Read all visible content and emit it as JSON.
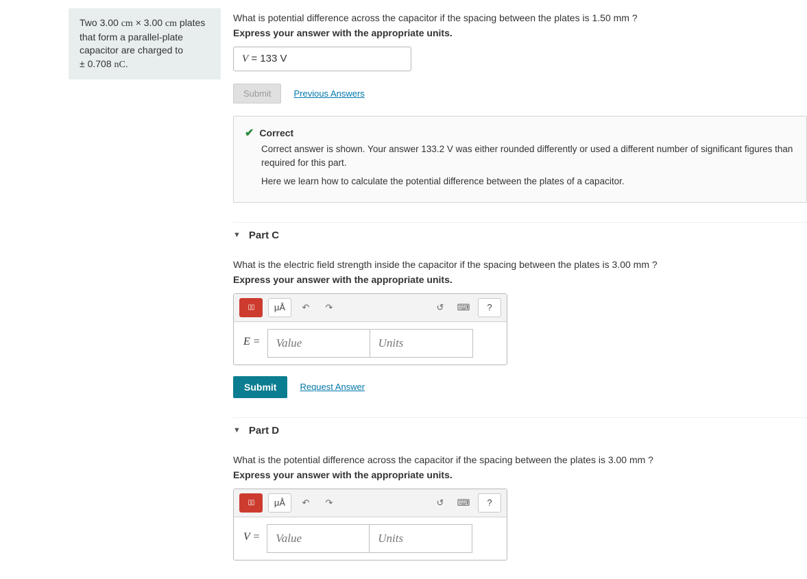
{
  "problem": {
    "line1_a": "Two 3.00 ",
    "unit1": "cm",
    "times": " × 3.00 ",
    "unit2": "cm",
    "line1_b": " plates that form a parallel-plate capacitor are charged to",
    "line2_a": "± 0.708 ",
    "unit3": "nC",
    "line2_b": "."
  },
  "partB": {
    "question": "What is potential difference across the capacitor if the spacing between the plates is 1.50 mm ?",
    "instruct": "Express your answer with the appropriate units.",
    "var": "V",
    "eq": " = ",
    "value": "133 V",
    "submit": "Submit",
    "prev": "Previous Answers",
    "correct": "Correct",
    "fb1": "Correct answer is shown. Your answer 133.2 V was either rounded differently or used a different number of significant figures than required for this part.",
    "fb2": "Here we learn how to calculate the potential difference between the plates of a capacitor."
  },
  "partC": {
    "title": "Part C",
    "question": "What is the electric field strength inside the capacitor if the spacing between the plates is 3.00 mm ?",
    "instruct": "Express your answer with the appropriate units.",
    "var": "E = ",
    "value_ph": "Value",
    "units_ph": "Units",
    "submit": "Submit",
    "request": "Request Answer"
  },
  "partD": {
    "title": "Part D",
    "question": "What is the potential difference across the capacitor if the spacing between the plates is 3.00 mm ?",
    "instruct": "Express your answer with the appropriate units.",
    "var": "V = ",
    "value_ph": "Value",
    "units_ph": "Units"
  },
  "toolbar": {
    "templates": "▯▯",
    "mu": "μÅ",
    "undo": "↶",
    "redo": "↷",
    "reset": "↺",
    "keyboard": "⌨",
    "help": "?"
  }
}
